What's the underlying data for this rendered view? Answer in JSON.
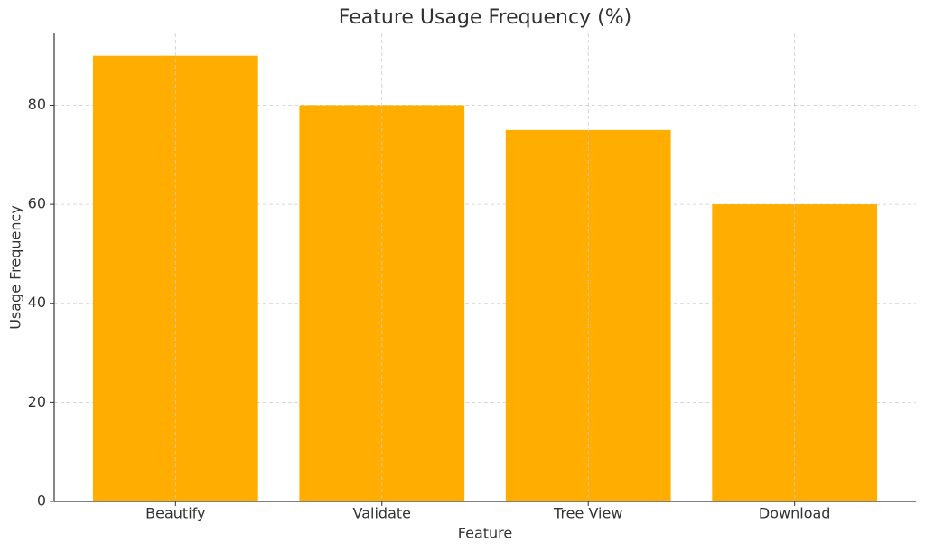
{
  "chart_data": {
    "type": "bar",
    "title": "Feature Usage Frequency (%)",
    "x_label": "Feature",
    "y_label": "Usage Frequency",
    "categories": [
      "Beautify",
      "Validate",
      "Tree View",
      "Download"
    ],
    "values": [
      90,
      80,
      75,
      60
    ],
    "color": "#ffae00",
    "ylim": [
      0,
      94.5
    ],
    "yticks": [
      0,
      20,
      40,
      60,
      80
    ],
    "grid": true
  }
}
